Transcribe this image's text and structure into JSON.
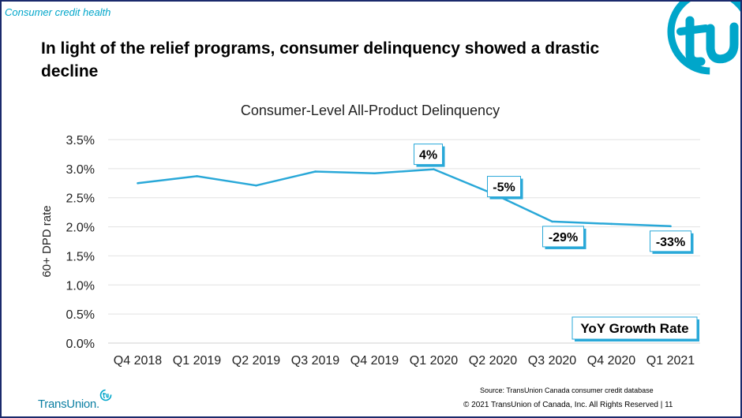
{
  "header": {
    "section_label": "Consumer credit health",
    "headline": "In light of the relief programs, consumer delinquency showed a drastic decline"
  },
  "chart_data": {
    "type": "line",
    "title": "Consumer-Level All-Product Delinquency",
    "ylabel": "60+ DPD rate",
    "xlabel": "",
    "categories": [
      "Q4 2018",
      "Q1 2019",
      "Q2 2019",
      "Q3 2019",
      "Q4 2019",
      "Q1 2020",
      "Q2 2020",
      "Q3 2020",
      "Q4 2020",
      "Q1 2021"
    ],
    "series": [
      {
        "values": [
          2.75,
          2.87,
          2.71,
          2.95,
          2.92,
          2.99,
          2.57,
          2.09,
          2.05,
          2.01
        ],
        "color": "#29a8d8"
      }
    ],
    "ylim": [
      0,
      3.5
    ],
    "yticks": [
      "0.0%",
      "0.5%",
      "1.0%",
      "1.5%",
      "2.0%",
      "2.5%",
      "3.0%",
      "3.5%"
    ],
    "grid": true,
    "annotations": [
      {
        "category": "Q1 2020",
        "text": "4%"
      },
      {
        "category": "Q2 2020",
        "text": "-5%"
      },
      {
        "category": "Q3 2020",
        "text": "-29%"
      },
      {
        "category": "Q1 2021",
        "text": "-33%"
      }
    ],
    "legend_box": "YoY Growth Rate"
  },
  "footer": {
    "source": "Source: TransUnion Canada consumer credit database",
    "copyright": "© 2021 TransUnion of Canada, Inc.  All Rights Reserved |   11",
    "brand_name": "TransUnion."
  },
  "colors": {
    "brand": "#00a6ca",
    "line": "#29a8d8",
    "border": "#1a2a6c"
  }
}
